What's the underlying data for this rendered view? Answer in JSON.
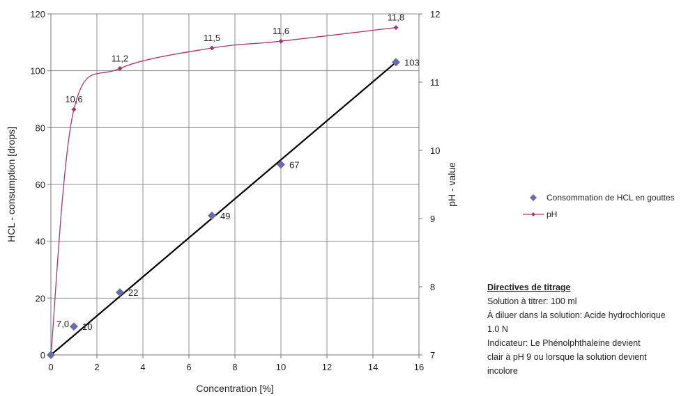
{
  "chart_data": {
    "type": "scatter",
    "xlabel": "Concentration [%]",
    "ylabel_left": "HCL - consumption [drops]",
    "ylabel_right": "pH - value",
    "xlim": [
      0,
      16
    ],
    "ylim_left": [
      0,
      120
    ],
    "ylim_right": [
      7,
      12
    ],
    "x_ticks": [
      0,
      2,
      4,
      6,
      8,
      10,
      12,
      14,
      16
    ],
    "y_left_ticks": [
      0,
      20,
      40,
      60,
      80,
      100,
      120
    ],
    "y_right_ticks": [
      7,
      8,
      9,
      10,
      11,
      12
    ],
    "grid": true,
    "legend_position": "right",
    "series": [
      {
        "name": "Consommation de HCL en gouttes",
        "axis": "left",
        "marker": "diamond",
        "color": "#6b6bab",
        "x": [
          0,
          1,
          3,
          7,
          10,
          15
        ],
        "y": [
          0,
          10,
          22,
          49,
          67,
          103
        ],
        "labels": [
          "",
          "10",
          "22",
          "49",
          "67",
          "103"
        ]
      },
      {
        "name": "pH",
        "axis": "right",
        "marker": "small-diamond",
        "color": "#a03a6a",
        "line": "smooth",
        "x": [
          0,
          1,
          3,
          7,
          10,
          15
        ],
        "y": [
          7.0,
          10.6,
          11.2,
          11.5,
          11.6,
          11.8
        ],
        "labels": [
          "7,0",
          "10,6",
          "11,2",
          "11,5",
          "11,6",
          "11,8"
        ]
      }
    ],
    "trendline": {
      "color": "#000000",
      "x": [
        0,
        15
      ],
      "y": [
        0,
        103
      ]
    }
  },
  "directions": {
    "title": "Directives de titrage",
    "lines": [
      "Solution à titrer: 100 ml",
      "À diluer dans la solution: Acide hydrochlorique 1.0 N",
      "Indicateur: Le Phénolphthaleine devient",
      "clair à pH 9 ou lorsque la solution devient",
      "incolore"
    ]
  }
}
